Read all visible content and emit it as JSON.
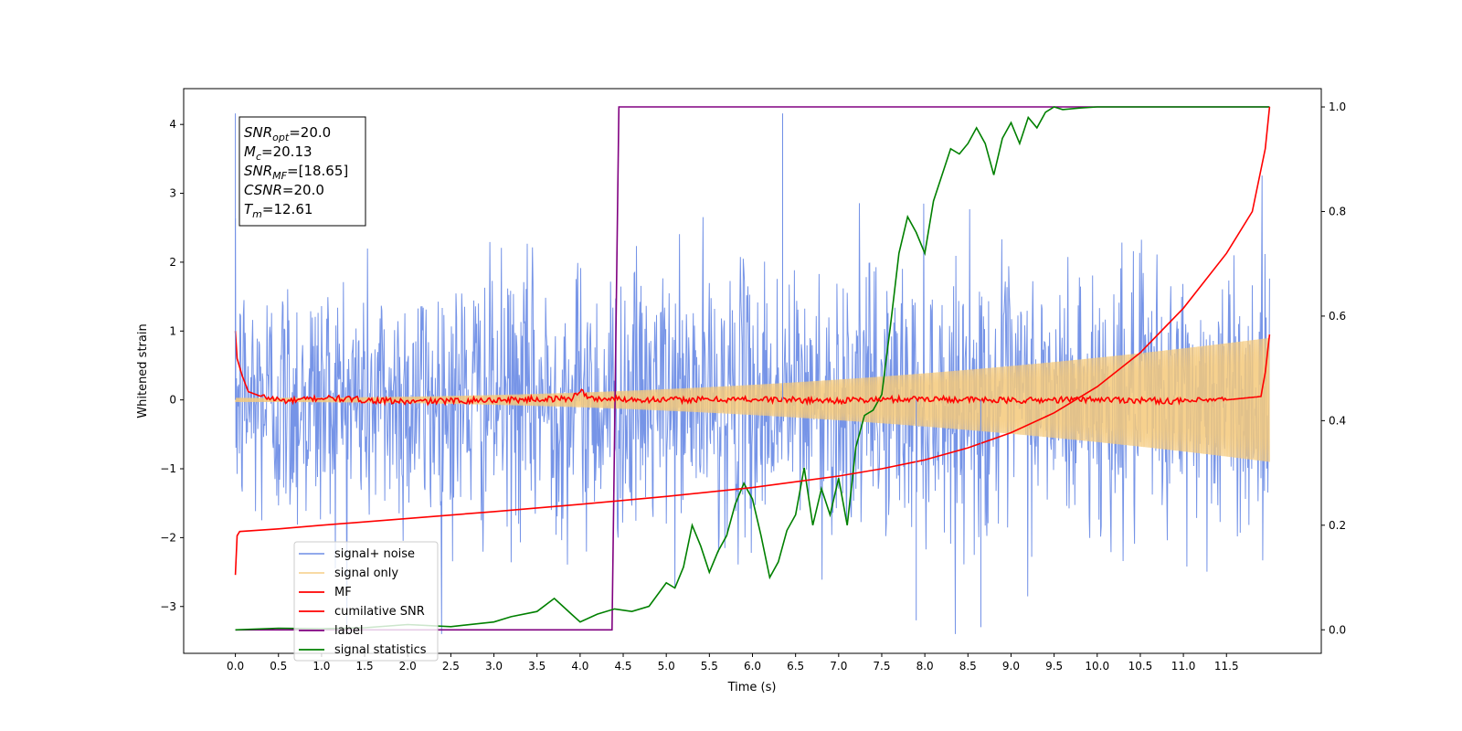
{
  "chart_data": {
    "type": "line",
    "xlabel": "Time (s)",
    "ylabel": "Whitened strain",
    "xlim": [
      -0.6,
      12.6
    ],
    "ylim": [
      -3.68,
      4.52
    ],
    "ylim_right": [
      -0.045,
      1.035
    ],
    "grid": false,
    "legend_placement": "lower-left",
    "x_ticks": [
      "0.0",
      "0.5",
      "1.0",
      "1.5",
      "2.0",
      "2.5",
      "3.0",
      "3.5",
      "4.0",
      "4.5",
      "5.0",
      "5.5",
      "6.0",
      "6.5",
      "7.0",
      "7.5",
      "8.0",
      "8.5",
      "9.0",
      "9.5",
      "10.0",
      "10.5",
      "11.0",
      "11.5"
    ],
    "y_ticks_left": [
      "4",
      "3",
      "2",
      "1",
      "0",
      "−1",
      "−2",
      "−3"
    ],
    "y_ticks_right": [
      "1.0",
      "0.8",
      "0.6",
      "0.4",
      "0.2",
      "0.0"
    ],
    "annotation": [
      {
        "var": "SNR",
        "sub": "opt",
        "value": "=20.0"
      },
      {
        "var": "M",
        "sub": "c",
        "value": "=20.13"
      },
      {
        "var": "SNR",
        "sub": "MF",
        "value": "=[18.65]"
      },
      {
        "var": "CSNR",
        "sub": "",
        "value": "=20.0"
      },
      {
        "var": "T",
        "sub": "m",
        "value": "=12.61"
      }
    ],
    "series": [
      {
        "name": "signal+ noise",
        "color": "#6f8ee6",
        "axis": "left",
        "kind": "noise",
        "sigma": 0.95,
        "x_range": [
          0.0,
          12.0
        ]
      },
      {
        "name": "signal only",
        "color": "#f5c97a",
        "axis": "left",
        "kind": "chirp",
        "amplitude_start": 0.03,
        "amplitude_end": 0.9,
        "x_range": [
          0.0,
          12.0
        ]
      },
      {
        "name": "MF",
        "color": "#ff0000",
        "axis": "left",
        "x": [
          0.0,
          0.02,
          0.08,
          0.15,
          0.3,
          0.6,
          1.0,
          2.0,
          3.0,
          3.9,
          4.0,
          4.1,
          5.0,
          6.0,
          7.0,
          8.0,
          9.0,
          10.0,
          11.0,
          11.5,
          11.9,
          11.95,
          12.0
        ],
        "y": [
          1.0,
          0.6,
          0.35,
          0.12,
          0.05,
          -0.02,
          0.03,
          -0.03,
          0.0,
          0.02,
          0.15,
          0.02,
          0.0,
          0.01,
          -0.01,
          0.02,
          -0.01,
          0.01,
          -0.02,
          0.0,
          0.05,
          0.4,
          0.95
        ]
      },
      {
        "name": "cumilative SNR",
        "color": "#ff0000",
        "axis": "right",
        "x": [
          0.0,
          0.02,
          0.05,
          0.5,
          1.0,
          2.0,
          3.0,
          4.0,
          5.0,
          6.0,
          7.0,
          7.5,
          8.0,
          8.5,
          9.0,
          9.5,
          10.0,
          10.5,
          11.0,
          11.5,
          11.8,
          11.95,
          12.0
        ],
        "y": [
          0.105,
          0.18,
          0.188,
          0.193,
          0.2,
          0.213,
          0.226,
          0.24,
          0.255,
          0.272,
          0.294,
          0.308,
          0.325,
          0.348,
          0.377,
          0.415,
          0.465,
          0.53,
          0.615,
          0.72,
          0.8,
          0.92,
          1.0
        ]
      },
      {
        "name": "label",
        "color": "#800080",
        "axis": "right",
        "x": [
          0.0,
          4.37,
          4.45,
          12.0
        ],
        "y": [
          0.0,
          0.0,
          1.0,
          1.0
        ]
      },
      {
        "name": "signal statistics",
        "color": "#008000",
        "axis": "right",
        "x": [
          0.0,
          0.5,
          1.0,
          1.5,
          2.0,
          2.5,
          3.0,
          3.2,
          3.5,
          3.7,
          3.8,
          3.9,
          4.0,
          4.2,
          4.4,
          4.6,
          4.8,
          5.0,
          5.1,
          5.2,
          5.3,
          5.4,
          5.5,
          5.6,
          5.7,
          5.8,
          5.9,
          6.0,
          6.1,
          6.2,
          6.3,
          6.4,
          6.5,
          6.6,
          6.7,
          6.8,
          6.9,
          7.0,
          7.1,
          7.2,
          7.3,
          7.4,
          7.5,
          7.6,
          7.7,
          7.8,
          7.9,
          8.0,
          8.1,
          8.2,
          8.3,
          8.4,
          8.5,
          8.6,
          8.7,
          8.8,
          8.9,
          9.0,
          9.1,
          9.2,
          9.3,
          9.4,
          9.5,
          9.6,
          9.8,
          10.0,
          10.3,
          10.5,
          11.0,
          11.5,
          12.0
        ],
        "y": [
          0.0,
          0.003,
          0.002,
          0.004,
          0.01,
          0.006,
          0.015,
          0.025,
          0.035,
          0.06,
          0.045,
          0.03,
          0.015,
          0.03,
          0.04,
          0.035,
          0.045,
          0.09,
          0.08,
          0.12,
          0.2,
          0.16,
          0.11,
          0.15,
          0.18,
          0.24,
          0.28,
          0.25,
          0.18,
          0.1,
          0.13,
          0.19,
          0.22,
          0.31,
          0.2,
          0.27,
          0.22,
          0.29,
          0.2,
          0.35,
          0.41,
          0.42,
          0.45,
          0.58,
          0.72,
          0.79,
          0.76,
          0.72,
          0.82,
          0.87,
          0.92,
          0.91,
          0.93,
          0.96,
          0.93,
          0.87,
          0.94,
          0.97,
          0.93,
          0.98,
          0.96,
          0.99,
          1.0,
          0.995,
          0.998,
          1.0,
          1.0,
          1.0,
          1.0,
          1.0,
          1.0
        ]
      }
    ]
  }
}
